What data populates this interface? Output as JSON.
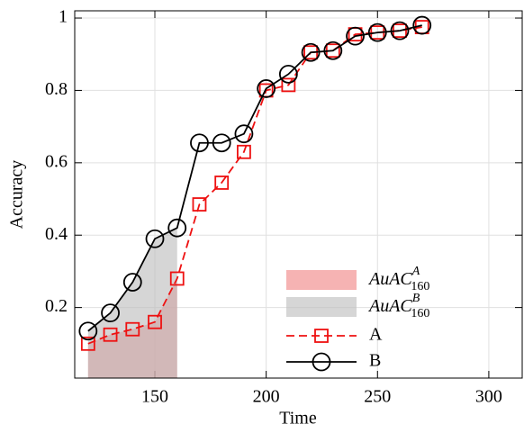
{
  "chart_data": {
    "type": "line",
    "x_label": "Time",
    "y_label": "Accuracy",
    "x": [
      120,
      130,
      140,
      150,
      160,
      170,
      180,
      190,
      200,
      210,
      220,
      230,
      240,
      250,
      260,
      270
    ],
    "series": [
      {
        "name": "A",
        "color": "#ee1111",
        "marker": "square",
        "dash": true,
        "values": [
          0.1,
          0.125,
          0.14,
          0.16,
          0.28,
          0.485,
          0.545,
          0.63,
          0.8,
          0.815,
          0.905,
          0.91,
          0.955,
          0.96,
          0.965,
          0.975
        ]
      },
      {
        "name": "B",
        "color": "#000000",
        "marker": "circle",
        "dash": false,
        "values": [
          0.135,
          0.185,
          0.27,
          0.39,
          0.42,
          0.655,
          0.655,
          0.68,
          0.805,
          0.845,
          0.905,
          0.91,
          0.95,
          0.96,
          0.965,
          0.98
        ]
      }
    ],
    "areas": [
      {
        "base": "AuAC",
        "sup": "A",
        "sub": "160",
        "series": 0,
        "color": "#f08080"
      },
      {
        "base": "AuAC",
        "sup": "B",
        "sub": "160",
        "series": 1,
        "color": "#bbbbbb"
      }
    ],
    "xlim": [
      114,
      315
    ],
    "ylim": [
      0.005,
      1.02
    ],
    "xticks": [
      150,
      200,
      250,
      300
    ],
    "yticks": [
      0.2,
      0.4,
      0.6,
      0.8,
      1
    ],
    "grid": true,
    "legend": "lower right"
  }
}
